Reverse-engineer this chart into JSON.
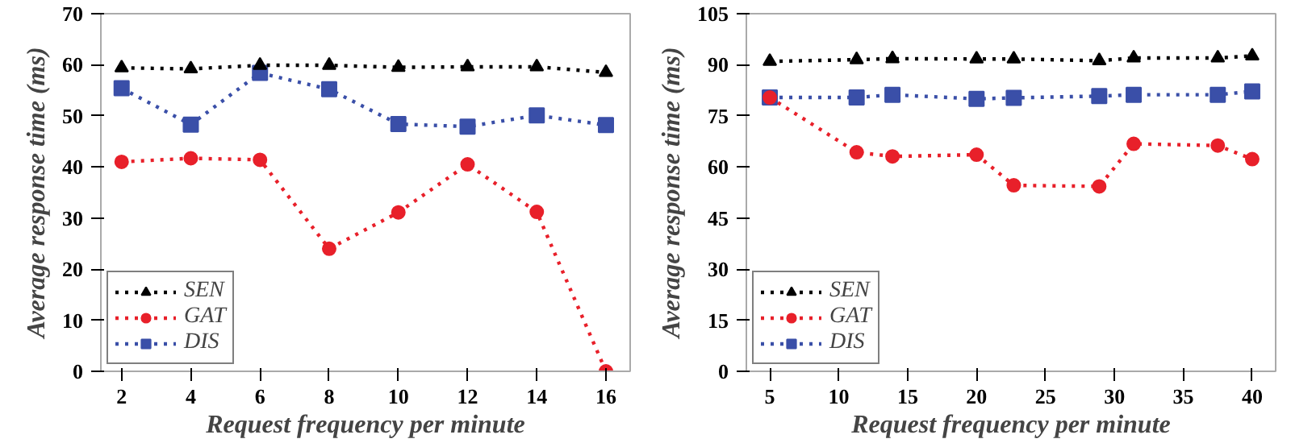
{
  "chart_data": [
    {
      "type": "line",
      "xlabel": "Request frequency per minute",
      "ylabel": "Average response time (ms)",
      "x": [
        2,
        4,
        6,
        8,
        10,
        12,
        14,
        16
      ],
      "xlim": [
        1.4,
        16.7
      ],
      "xticks": [
        2,
        4,
        6,
        8,
        10,
        12,
        14,
        16
      ],
      "ylim": [
        0,
        70
      ],
      "yticks": [
        0,
        10,
        20,
        30,
        40,
        50,
        60,
        70
      ],
      "grid": false,
      "legend": "bottom left",
      "line_style": "dotted",
      "series": [
        {
          "name": "SEN",
          "color": "#000000",
          "marker": "triangle",
          "values": [
            59.4,
            59.2,
            59.9,
            59.9,
            59.5,
            59.6,
            59.6,
            58.5
          ]
        },
        {
          "name": "GAT",
          "color": "#e8202a",
          "marker": "circle",
          "values": [
            41.0,
            41.7,
            41.4,
            24.0,
            31.1,
            40.5,
            31.2,
            0
          ]
        },
        {
          "name": "DIS",
          "color": "#3a4fa8",
          "marker": "square",
          "values": [
            55.4,
            48.3,
            58.4,
            55.2,
            48.4,
            47.9,
            50.1,
            48.2
          ]
        }
      ]
    },
    {
      "type": "line",
      "xlabel": "Request frequency per minute",
      "ylabel": "Average response time (ms)",
      "x": [
        5,
        11.3,
        13.9,
        20,
        22.7,
        28.9,
        31.4,
        37.5,
        40
      ],
      "xlim": [
        3.3,
        41.7
      ],
      "xticks": [
        5,
        10,
        15,
        20,
        25,
        30,
        35,
        40
      ],
      "ylim": [
        0,
        105
      ],
      "yticks": [
        0,
        15,
        30,
        45,
        60,
        75,
        90,
        105
      ],
      "grid": false,
      "legend": "bottom left",
      "line_style": "dotted",
      "series": [
        {
          "name": "SEN",
          "color": "#000000",
          "marker": "triangle",
          "values": [
            91.0,
            91.5,
            91.8,
            91.7,
            91.7,
            91.2,
            92.0,
            92.0,
            92.6
          ]
        },
        {
          "name": "GAT",
          "color": "#e8202a",
          "marker": "circle",
          "values": [
            80.4,
            64.3,
            63.1,
            63.6,
            54.6,
            54.3,
            66.8,
            66.3,
            62.3
          ]
        },
        {
          "name": "DIS",
          "color": "#3a4fa8",
          "marker": "square",
          "values": [
            80.4,
            80.4,
            81.2,
            80.0,
            80.3,
            80.8,
            81.2,
            81.2,
            82.2
          ]
        }
      ]
    }
  ]
}
